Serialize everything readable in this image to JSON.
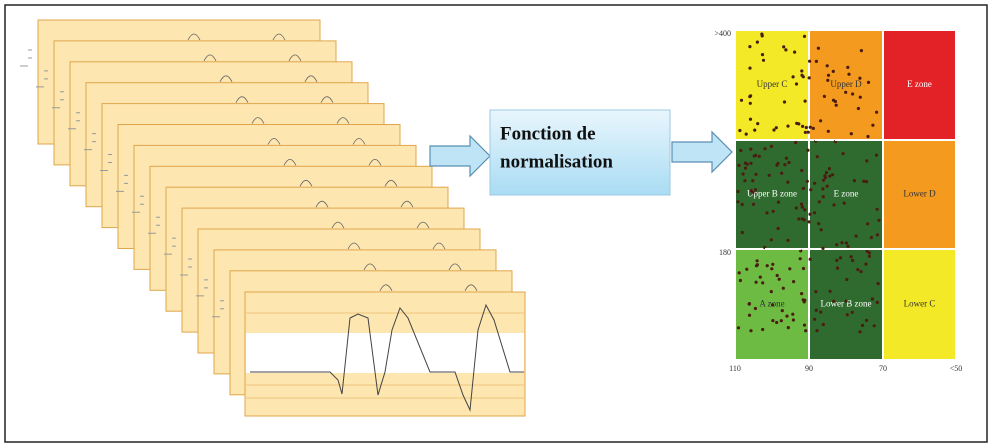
{
  "normalization_box": {
    "lines": [
      "Fonction de",
      "normalisation"
    ]
  },
  "zone_grid": {
    "zones": [
      [
        "Upper C",
        "Upper D",
        "E zone"
      ],
      [
        "Upper B zone",
        "E zone",
        "Lower D"
      ],
      [
        "A zone",
        "Lower B zone",
        "Lower C"
      ]
    ],
    "y_labels": [
      ">400",
      "180"
    ],
    "x_labels": [
      "110",
      "90",
      "70",
      "<50"
    ]
  }
}
